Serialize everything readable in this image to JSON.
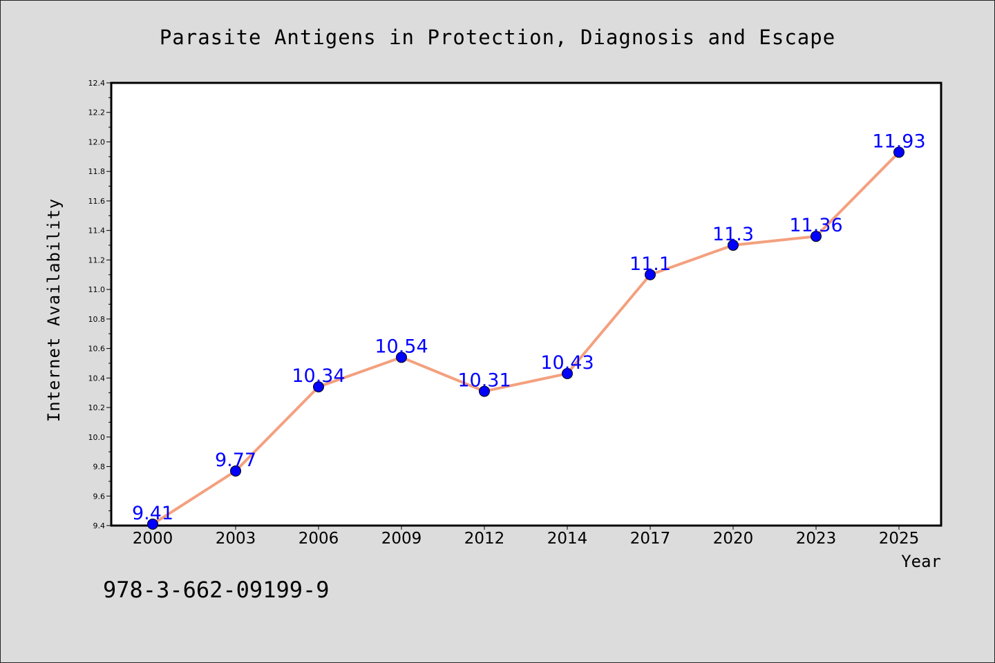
{
  "chart_data": {
    "type": "line",
    "title": "Parasite Antigens in Protection, Diagnosis and Escape",
    "xlabel": "Year",
    "ylabel": "Internet Availability",
    "categories": [
      "2000",
      "2003",
      "2006",
      "2009",
      "2012",
      "2014",
      "2017",
      "2020",
      "2023",
      "2025"
    ],
    "series": [
      {
        "values": [
          9.41,
          9.77,
          10.34,
          10.54,
          10.31,
          10.43,
          11.1,
          11.3,
          11.36,
          11.93
        ]
      }
    ],
    "data_labels": [
      "9.41",
      "9.77",
      "10.34",
      "10.54",
      "10.31",
      "10.43",
      "11.1",
      "11.3",
      "11.36",
      "11.93"
    ],
    "ylim": [
      9.4,
      12.4
    ],
    "yticks": [
      "9.4",
      "9.6",
      "9.8",
      "10.0",
      "10.2",
      "10.4",
      "10.6",
      "10.8",
      "11.0",
      "11.2",
      "11.4",
      "11.6",
      "11.8",
      "12.0",
      "12.2",
      "12.4"
    ],
    "grid": false,
    "colors": {
      "line": "#f4a07e",
      "marker": "#0000ff",
      "data_label": "#0000ff",
      "background": "#dcdcdc",
      "plot_area": "#ffffff"
    }
  },
  "footer": {
    "isbn": "978-3-662-09199-9"
  }
}
